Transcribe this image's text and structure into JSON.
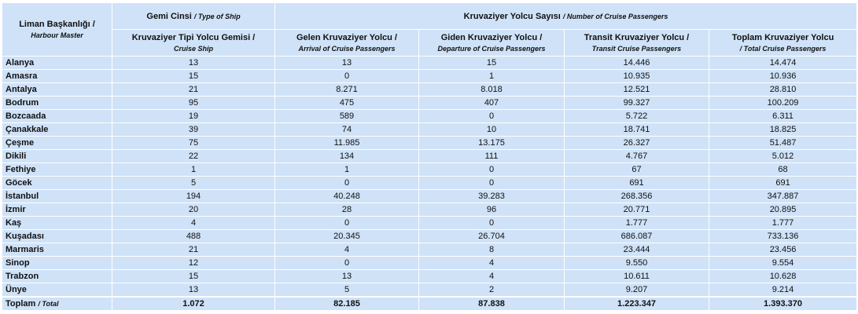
{
  "table": {
    "header": {
      "harbour": {
        "main": "Liman Başkanlığı /",
        "sub": "Harbour Master"
      },
      "ship_type": {
        "main": "Gemi Cinsi",
        "sub": "/ Type of Ship"
      },
      "passengers": {
        "main": "Kruvaziyer Yolcu Sayısı",
        "sub": "/ Number of Cruise Passengers"
      },
      "columns": [
        {
          "main": "Kruvaziyer Tipi Yolcu Gemisi /",
          "sub": "Cruise Ship"
        },
        {
          "main": "Gelen Kruvaziyer Yolcu /",
          "sub": "Arrival of Cruise Passengers"
        },
        {
          "main": "Giden Kruvaziyer Yolcu /",
          "sub": "Departure of Cruise Passengers"
        },
        {
          "main": "Transit Kruvaziyer Yolcu /",
          "sub": "Transit Cruise Passengers"
        },
        {
          "main": "Toplam Kruvaziyer Yolcu",
          "sub": "/ Total Cruise Passengers"
        }
      ]
    },
    "rows": [
      [
        "Alanya",
        "13",
        "13",
        "15",
        "14.446",
        "14.474"
      ],
      [
        "Amasra",
        "15",
        "0",
        "1",
        "10.935",
        "10.936"
      ],
      [
        "Antalya",
        "21",
        "8.271",
        "8.018",
        "12.521",
        "28.810"
      ],
      [
        "Bodrum",
        "95",
        "475",
        "407",
        "99.327",
        "100.209"
      ],
      [
        "Bozcaada",
        "19",
        "589",
        "0",
        "5.722",
        "6.311"
      ],
      [
        "Çanakkale",
        "39",
        "74",
        "10",
        "18.741",
        "18.825"
      ],
      [
        "Çeşme",
        "75",
        "11.985",
        "13.175",
        "26.327",
        "51.487"
      ],
      [
        "Dikili",
        "22",
        "134",
        "111",
        "4.767",
        "5.012"
      ],
      [
        "Fethiye",
        "1",
        "1",
        "0",
        "67",
        "68"
      ],
      [
        "Göcek",
        "5",
        "0",
        "0",
        "691",
        "691"
      ],
      [
        "İstanbul",
        "194",
        "40.248",
        "39.283",
        "268.356",
        "347.887"
      ],
      [
        "İzmir",
        "20",
        "28",
        "96",
        "20.771",
        "20.895"
      ],
      [
        "Kaş",
        "4",
        "0",
        "0",
        "1.777",
        "1.777"
      ],
      [
        "Kuşadası",
        "488",
        "20.345",
        "26.704",
        "686.087",
        "733.136"
      ],
      [
        "Marmaris",
        "21",
        "4",
        "8",
        "23.444",
        "23.456"
      ],
      [
        "Sinop",
        "12",
        "0",
        "4",
        "9.550",
        "9.554"
      ],
      [
        "Trabzon",
        "15",
        "13",
        "4",
        "10.611",
        "10.628"
      ],
      [
        "Ünye",
        "13",
        "5",
        "2",
        "9.207",
        "9.214"
      ]
    ],
    "total": {
      "label": "Toplam",
      "label_sub": "/ Total",
      "values": [
        "1.072",
        "82.185",
        "87.838",
        "1.223.347",
        "1.393.370"
      ]
    }
  }
}
